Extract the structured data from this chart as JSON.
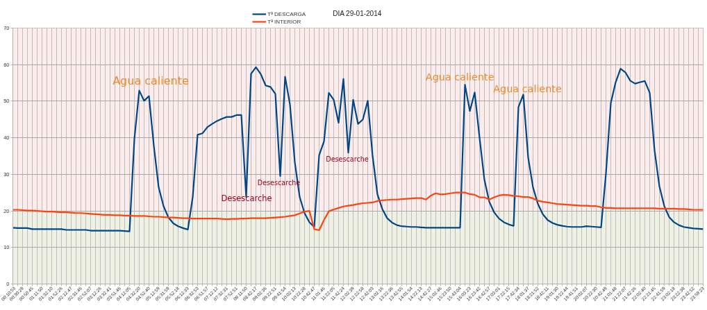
{
  "chart_data": {
    "type": "line",
    "title": "DIA 29-01-2014",
    "categories": [
      "00:10:53",
      null,
      "00:30:29",
      null,
      "00:50:45",
      null,
      "01:11:50",
      null,
      "01:32:10",
      null,
      "01:52:26",
      null,
      "02:12:47",
      null,
      "02:31:46",
      null,
      "02:52:07",
      null,
      "03:12:26",
      null,
      "03:32:41",
      null,
      "03:51:46",
      null,
      "04:12:05",
      null,
      "04:32:20",
      null,
      "04:52:40",
      null,
      "05:12:59",
      null,
      "05:31:59",
      null,
      "05:52:18",
      null,
      "06:12:33",
      null,
      "06:32:53",
      null,
      "06:51:57",
      null,
      "07:12:12",
      null,
      "07:32:31",
      null,
      "07:52:51",
      null,
      "08:11:50",
      null,
      "08:42:17",
      null,
      "09:02:36",
      null,
      "09:22:51",
      null,
      "09:41:54",
      null,
      "10:02:13",
      null,
      "10:22:28",
      null,
      "10:42:47",
      null,
      "11:01:46",
      null,
      "11:22:05",
      null,
      "11:42:24",
      null,
      "12:02:39",
      null,
      "12:22:58",
      null,
      "12:42:03",
      null,
      "13:02:16",
      null,
      "13:22:36",
      null,
      "13:42:55",
      null,
      "14:01:54",
      null,
      "14:22:13",
      null,
      "14:42:27",
      null,
      "15:02:46",
      null,
      "15:23:50",
      null,
      "15:43:04",
      null,
      "16:03:23",
      null,
      "16:23:42",
      null,
      "16:42:57",
      null,
      "17:03:01",
      null,
      "17:22:15",
      null,
      "17:42:34",
      null,
      "18:01:37",
      null,
      "18:21:52",
      null,
      "18:42:11",
      null,
      "19:01:30",
      null,
      "19:22:44",
      null,
      "19:41:51",
      null,
      "20:02:07",
      null,
      "20:22:30",
      null,
      "20:42:49",
      null,
      "21:01:48",
      null,
      "21:22:07",
      null,
      "21:42:26",
      null,
      "22:02:40",
      null,
      "22:21:45",
      null,
      "22:41:59",
      null,
      "23:02:18",
      null,
      "23:22:38",
      null,
      "23:42:52",
      null,
      "23:59:23"
    ],
    "series": [
      {
        "name": "Tª DESCARGA",
        "color": "#004586",
        "values": [
          15.4,
          15.3,
          15.3,
          15.3,
          15.0,
          15.0,
          15.0,
          15.0,
          15.0,
          15.0,
          15.0,
          14.8,
          14.8,
          14.8,
          14.8,
          14.8,
          14.6,
          14.6,
          14.6,
          14.6,
          14.6,
          14.6,
          14.6,
          14.5,
          14.4,
          39.7,
          52.9,
          50.1,
          51.4,
          37.8,
          26.4,
          21.3,
          18.2,
          16.6,
          15.8,
          15.3,
          14.9,
          23.8,
          40.8,
          41.2,
          42.9,
          43.8,
          44.6,
          45.2,
          45.7,
          45.7,
          46.2,
          46.2,
          23.8,
          57.5,
          59.3,
          57.4,
          54.3,
          53.9,
          52.0,
          29.5,
          56.7,
          49.1,
          33.3,
          23.8,
          19.4,
          16.9,
          15.6,
          35.2,
          39.0,
          52.3,
          50.4,
          44.1,
          56.1,
          35.9,
          50.4,
          43.8,
          45.0,
          50.1,
          35.0,
          24.5,
          20.5,
          18.0,
          16.8,
          16.1,
          15.8,
          15.7,
          15.6,
          15.6,
          15.5,
          15.4,
          15.4,
          15.4,
          15.4,
          15.4,
          15.4,
          15.4,
          15.4,
          54.5,
          47.3,
          52.4,
          40.0,
          28.5,
          22.5,
          19.6,
          17.9,
          16.9,
          16.3,
          15.9,
          48.4,
          51.8,
          34.6,
          26.4,
          21.9,
          19.1,
          17.5,
          16.7,
          16.2,
          15.9,
          15.7,
          15.6,
          15.6,
          15.6,
          15.8,
          15.7,
          15.6,
          15.5,
          30.2,
          49.5,
          55.2,
          58.9,
          57.9,
          55.6,
          54.8,
          55.2,
          55.5,
          52.3,
          36.5,
          26.7,
          21.3,
          18.3,
          16.9,
          16.1,
          15.6,
          15.4,
          15.2,
          15.1,
          15.0
        ]
      },
      {
        "name": "Tª INTERIOR",
        "color": "#ff420e",
        "values": [
          20.3,
          20.3,
          20.2,
          20.1,
          20.1,
          20.0,
          19.9,
          19.8,
          19.8,
          19.7,
          19.6,
          19.6,
          19.5,
          19.4,
          19.4,
          19.3,
          19.2,
          19.1,
          19.0,
          18.9,
          18.9,
          18.8,
          18.8,
          18.7,
          18.7,
          18.6,
          18.6,
          18.6,
          18.5,
          18.4,
          18.4,
          18.3,
          18.2,
          18.2,
          18.1,
          18.0,
          18.0,
          17.9,
          17.9,
          17.9,
          17.9,
          17.9,
          17.9,
          17.8,
          17.7,
          17.8,
          17.8,
          17.9,
          17.9,
          18.0,
          18.0,
          18.0,
          18.0,
          18.1,
          18.2,
          18.3,
          18.4,
          18.6,
          18.8,
          19.3,
          19.8,
          20.0,
          15.0,
          14.7,
          17.5,
          19.9,
          20.4,
          20.8,
          21.2,
          21.4,
          21.6,
          21.9,
          22.1,
          22.2,
          22.3,
          22.7,
          22.9,
          23.0,
          23.1,
          23.1,
          23.2,
          23.3,
          23.4,
          23.5,
          23.5,
          23.1,
          24.2,
          24.8,
          24.5,
          24.6,
          24.8,
          25.0,
          25.0,
          25.0,
          24.6,
          24.4,
          23.7,
          23.7,
          23.1,
          23.7,
          24.2,
          24.4,
          24.3,
          24.1,
          24.0,
          23.8,
          23.8,
          23.4,
          22.8,
          22.5,
          22.3,
          22.1,
          21.9,
          21.8,
          21.7,
          21.6,
          21.5,
          21.4,
          21.4,
          21.3,
          21.3,
          21.0,
          20.8,
          20.8,
          20.7,
          20.7,
          20.7,
          20.7,
          20.7,
          20.7,
          20.7,
          20.7,
          20.7,
          20.6,
          20.6,
          20.6,
          20.6,
          20.5,
          20.5,
          20.4,
          20.3,
          20.3,
          20.3
        ]
      }
    ],
    "ylim": [
      0,
      70
    ],
    "yticks": [
      0,
      10,
      20,
      30,
      40,
      50,
      60,
      70
    ],
    "grid": true,
    "legend": "top",
    "bands": [
      {
        "axis": "y",
        "from": 20,
        "to": 70,
        "color": "#fcecec"
      },
      {
        "axis": "y",
        "from": 0,
        "to": 20,
        "color": "#eef1e3"
      }
    ],
    "annotations": [
      "Agua caliente",
      "Agua caliente",
      "Agua caliente",
      "Desescarche",
      "Desescarche",
      "Desescarche"
    ]
  }
}
